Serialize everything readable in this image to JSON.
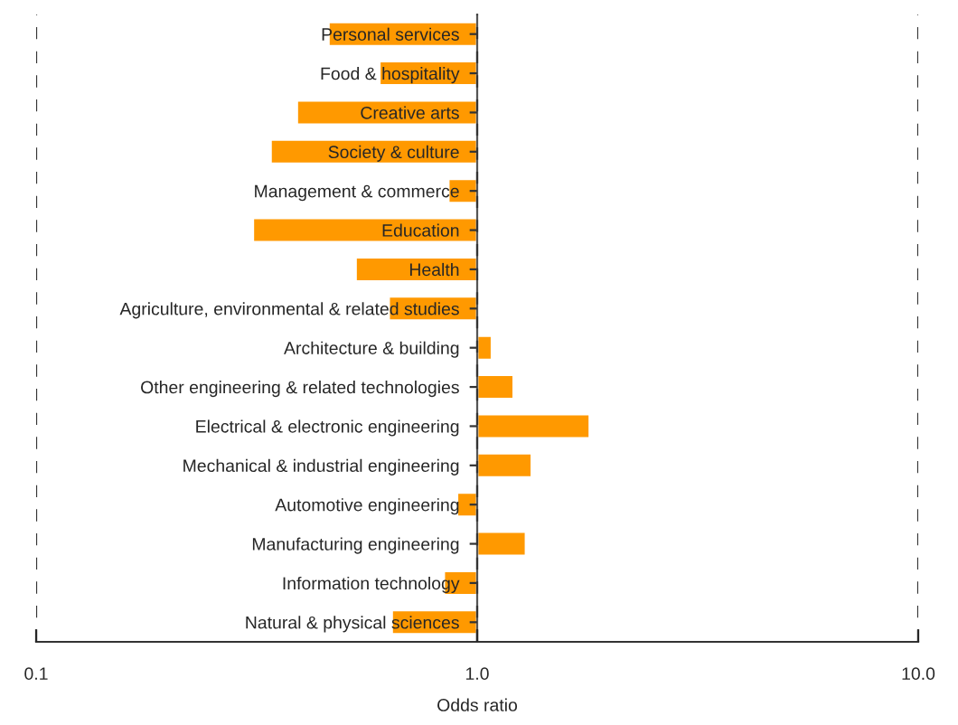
{
  "chart_data": {
    "type": "bar",
    "orientation": "horizontal",
    "log": "x",
    "xlabel": "Odds ratio",
    "categories": [
      "Personal services",
      "Food & hospitality",
      "Creative arts",
      "Society & culture",
      "Management & commerce",
      "Education",
      "Health",
      "Agriculture, environmental & related studies",
      "Architecture & building",
      "Other engineering & related technologies",
      "Electrical & electronic engineering",
      "Mechanical & industrial engineering",
      "Automotive engineering",
      "Manufacturing engineering",
      "Information technology",
      "Natural & physical sciences"
    ],
    "values": [
      -0.54,
      -0.4,
      -0.61,
      -0.66,
      -0.14,
      -0.69,
      -0.47,
      -0.37,
      0.08,
      0.21,
      0.8,
      0.33,
      -0.1,
      0.29,
      -0.16,
      -0.36
    ],
    "base": [
      1,
      1,
      1,
      1,
      1,
      1,
      1,
      1,
      1,
      1,
      1,
      1,
      1,
      1,
      1,
      1
    ],
    "color": "#ff9900",
    "xlim": [
      0.1,
      10
    ],
    "xticks": [
      {
        "value": 0.1,
        "label": "0.1"
      },
      {
        "value": 1,
        "label": "1.0"
      },
      {
        "value": 10,
        "label": "10.0"
      }
    ],
    "grid": "x"
  }
}
